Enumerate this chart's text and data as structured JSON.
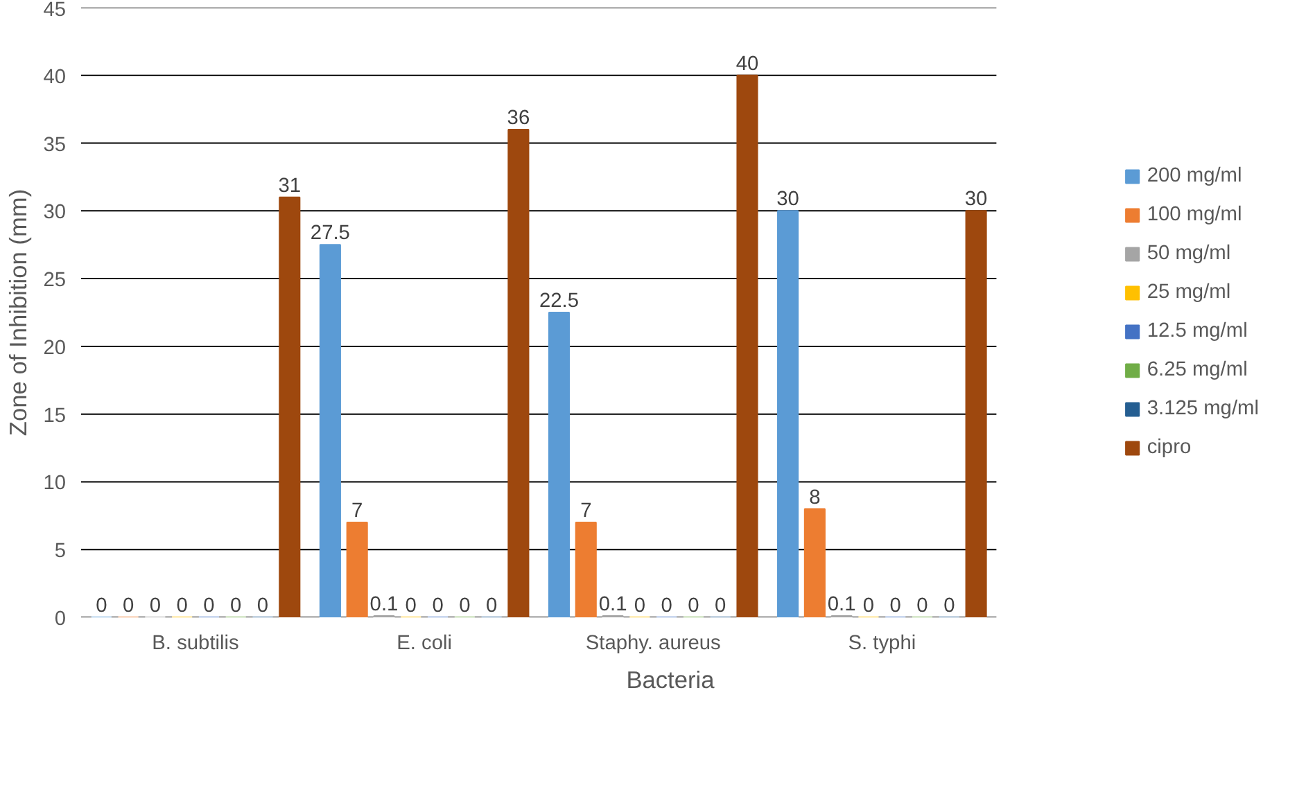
{
  "chart_data": {
    "type": "bar",
    "xlabel": "Bacteria",
    "ylabel": "Zone of Inhibition (mm)",
    "categories": [
      "B. subtilis",
      "E. coli",
      "Staphy. aureus",
      "S. typhi"
    ],
    "series": [
      {
        "name": "200 mg/ml",
        "color": "#5b9bd5",
        "values": [
          0,
          27.5,
          22.5,
          30
        ]
      },
      {
        "name": "100 mg/ml",
        "color": "#ed7d31",
        "values": [
          0,
          7,
          7,
          8
        ]
      },
      {
        "name": "50 mg/ml",
        "color": "#a5a5a5",
        "values": [
          0,
          0.1,
          0.1,
          0.1
        ]
      },
      {
        "name": "25 mg/ml",
        "color": "#ffc000",
        "values": [
          0,
          0,
          0,
          0
        ]
      },
      {
        "name": "12.5 mg/ml",
        "color": "#4472c4",
        "values": [
          0,
          0,
          0,
          0
        ]
      },
      {
        "name": "6.25 mg/ml",
        "color": "#70ad47",
        "values": [
          0,
          0,
          0,
          0
        ]
      },
      {
        "name": "3.125 mg/ml",
        "color": "#255e91",
        "values": [
          0,
          0,
          0,
          0
        ]
      },
      {
        "name": "cipro",
        "color": "#9e480e",
        "values": [
          31,
          36,
          40,
          30
        ]
      }
    ],
    "ylim": [
      0,
      45
    ],
    "yticks": [
      0,
      5,
      10,
      15,
      20,
      25,
      30,
      35,
      40,
      45
    ],
    "grid": "y",
    "legend": "right",
    "data_labels": true
  }
}
